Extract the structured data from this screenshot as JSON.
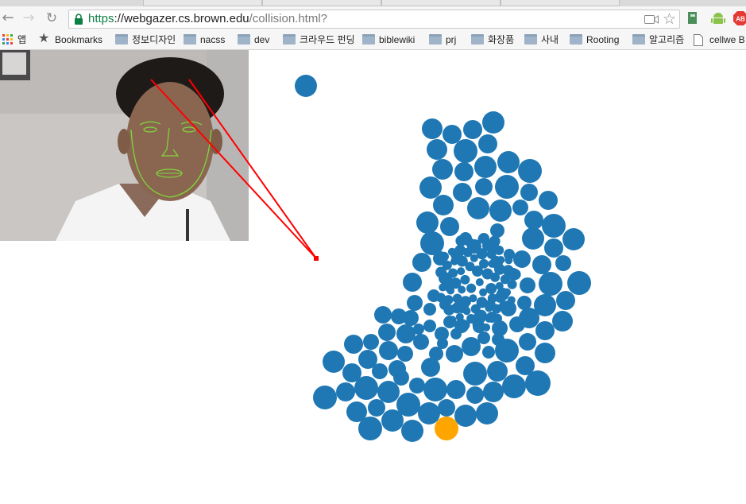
{
  "browser": {
    "url": {
      "scheme": "https",
      "host": "://webgazer.cs.brown.edu",
      "path": "/collision.html?"
    },
    "bookmarks": [
      {
        "label": "앱",
        "icon": "apps-grid-icon"
      },
      {
        "label": "Bookmarks",
        "icon": "star-icon"
      },
      {
        "label": "정보디자인",
        "icon": "folder-icon"
      },
      {
        "label": "nacss",
        "icon": "folder-icon"
      },
      {
        "label": "dev",
        "icon": "folder-icon"
      },
      {
        "label": "크라우드 펀딩",
        "icon": "folder-icon"
      },
      {
        "label": "biblewiki",
        "icon": "folder-icon"
      },
      {
        "label": "prj",
        "icon": "folder-icon"
      },
      {
        "label": "화장품",
        "icon": "folder-icon"
      },
      {
        "label": "사내",
        "icon": "folder-icon"
      },
      {
        "label": "Rooting",
        "icon": "folder-icon"
      },
      {
        "label": "알고리즘",
        "icon": "folder-icon"
      },
      {
        "label": "cellwe B",
        "icon": "page-icon"
      }
    ],
    "extensions": [
      "extension-icon",
      "android-icon",
      "adblock-icon"
    ],
    "adblock_label": "AB"
  },
  "colors": {
    "ball": "#1f78b4",
    "active_ball": "#ffa500",
    "gaze_line": "#ff0000",
    "face_mesh": "#7fd83a",
    "secure_green": "#0b8043"
  },
  "scene": {
    "webcam": "webcam-feed",
    "gaze_target": "gaze-dot",
    "balls": "collision-balls"
  }
}
